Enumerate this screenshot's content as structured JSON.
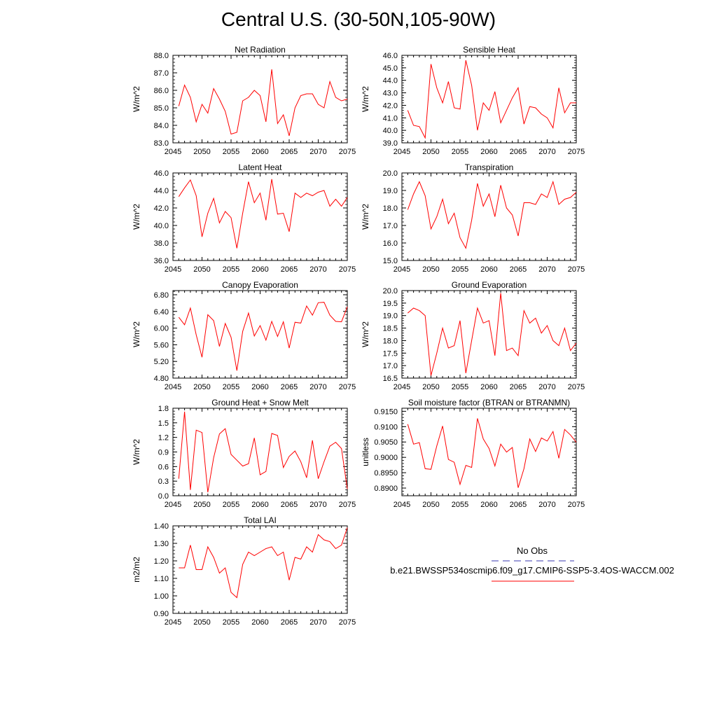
{
  "title": "Central U.S. (30-50N,105-90W)",
  "legend": {
    "obs_label": "No Obs",
    "obs_color": "#3b3bb0",
    "model_label": "b.e21.BWSSP534oscmip6.f09_g17.CMIP6-SSP5-3.4OS-WACCM.002",
    "model_color": "#ff0000"
  },
  "chart_data": [
    {
      "type": "line",
      "title": "Net Radiation",
      "ylabel": "W/m^2",
      "xlim": [
        2045,
        2075
      ],
      "ylim": [
        83.0,
        88.0
      ],
      "xticks": [
        "2045",
        "2050",
        "2055",
        "2060",
        "2065",
        "2070",
        "2075"
      ],
      "yticks": [
        "83.0",
        "84.0",
        "85.0",
        "86.0",
        "87.0",
        "88.0"
      ],
      "x": [
        2046,
        2047,
        2048,
        2049,
        2050,
        2051,
        2052,
        2053,
        2054,
        2055,
        2056,
        2057,
        2058,
        2059,
        2060,
        2061,
        2062,
        2063,
        2064,
        2065,
        2066,
        2067,
        2068,
        2069,
        2070,
        2071,
        2072,
        2073,
        2074,
        2075
      ],
      "series": [
        {
          "values": [
            85.1,
            86.3,
            85.6,
            84.2,
            85.2,
            84.7,
            86.1,
            85.5,
            84.8,
            83.5,
            83.6,
            85.4,
            85.6,
            86.0,
            85.7,
            84.2,
            87.2,
            84.1,
            84.6,
            83.4,
            85.0,
            85.7,
            85.8,
            85.8,
            85.2,
            85.0,
            86.5,
            85.6,
            85.4,
            85.5
          ]
        }
      ]
    },
    {
      "type": "line",
      "title": "Sensible Heat",
      "ylabel": "W/m^2",
      "xlim": [
        2045,
        2075
      ],
      "ylim": [
        39.0,
        46.0
      ],
      "xticks": [
        "2045",
        "2050",
        "2055",
        "2060",
        "2065",
        "2070",
        "2075"
      ],
      "yticks": [
        "39.0",
        "40.0",
        "41.0",
        "42.0",
        "43.0",
        "44.0",
        "45.0",
        "46.0"
      ],
      "x": [
        2046,
        2047,
        2048,
        2049,
        2050,
        2051,
        2052,
        2053,
        2054,
        2055,
        2056,
        2057,
        2058,
        2059,
        2060,
        2061,
        2062,
        2063,
        2064,
        2065,
        2066,
        2067,
        2068,
        2069,
        2070,
        2071,
        2072,
        2073,
        2074,
        2075
      ],
      "series": [
        {
          "values": [
            41.6,
            40.4,
            40.3,
            39.4,
            45.3,
            43.4,
            42.2,
            43.9,
            41.8,
            41.7,
            45.6,
            43.6,
            40.0,
            42.2,
            41.6,
            43.1,
            40.6,
            41.6,
            42.6,
            43.4,
            40.5,
            41.9,
            41.8,
            41.3,
            41.0,
            40.2,
            43.4,
            41.4,
            42.2,
            42.2
          ]
        }
      ]
    },
    {
      "type": "line",
      "title": "Latent Heat",
      "ylabel": "W/m^2",
      "xlim": [
        2045,
        2075
      ],
      "ylim": [
        36.0,
        46.0
      ],
      "xticks": [
        "2045",
        "2050",
        "2055",
        "2060",
        "2065",
        "2070",
        "2075"
      ],
      "yticks": [
        "36.0",
        "38.0",
        "40.0",
        "42.0",
        "44.0",
        "46.0"
      ],
      "x": [
        2046,
        2047,
        2048,
        2049,
        2050,
        2051,
        2052,
        2053,
        2054,
        2055,
        2056,
        2057,
        2058,
        2059,
        2060,
        2061,
        2062,
        2063,
        2064,
        2065,
        2066,
        2067,
        2068,
        2069,
        2070,
        2071,
        2072,
        2073,
        2074,
        2075
      ],
      "series": [
        {
          "values": [
            43.3,
            44.3,
            45.2,
            43.4,
            38.7,
            41.4,
            43.1,
            40.3,
            41.6,
            40.9,
            37.4,
            41.4,
            45.0,
            42.6,
            43.7,
            40.6,
            45.3,
            41.3,
            41.4,
            39.3,
            43.7,
            43.2,
            43.7,
            43.4,
            43.8,
            44.0,
            42.2,
            43.0,
            42.2,
            43.2
          ]
        }
      ]
    },
    {
      "type": "line",
      "title": "Transpiration",
      "ylabel": "W/m^2",
      "xlim": [
        2045,
        2075
      ],
      "ylim": [
        15.0,
        20.0
      ],
      "xticks": [
        "2045",
        "2050",
        "2055",
        "2060",
        "2065",
        "2070",
        "2075"
      ],
      "yticks": [
        "15.0",
        "16.0",
        "17.0",
        "18.0",
        "19.0",
        "20.0"
      ],
      "x": [
        2046,
        2047,
        2048,
        2049,
        2050,
        2051,
        2052,
        2053,
        2054,
        2055,
        2056,
        2057,
        2058,
        2059,
        2060,
        2061,
        2062,
        2063,
        2064,
        2065,
        2066,
        2067,
        2068,
        2069,
        2070,
        2071,
        2072,
        2073,
        2074,
        2075
      ],
      "series": [
        {
          "values": [
            17.9,
            18.8,
            19.5,
            18.7,
            16.8,
            17.5,
            18.5,
            17.1,
            17.7,
            16.3,
            15.7,
            17.3,
            19.4,
            18.1,
            18.8,
            17.5,
            19.3,
            18.0,
            17.6,
            16.4,
            18.3,
            18.3,
            18.2,
            18.8,
            18.6,
            19.5,
            18.2,
            18.5,
            18.6,
            18.9
          ]
        }
      ]
    },
    {
      "type": "line",
      "title": "Canopy Evaporation",
      "ylabel": "W/m^2",
      "xlim": [
        2045,
        2075
      ],
      "ylim": [
        4.8,
        6.9
      ],
      "xticks": [
        "2045",
        "2050",
        "2055",
        "2060",
        "2065",
        "2070",
        "2075"
      ],
      "yticks": [
        "4.80",
        "5.20",
        "5.60",
        "6.00",
        "6.40",
        "6.80"
      ],
      "x": [
        2046,
        2047,
        2048,
        2049,
        2050,
        2051,
        2052,
        2053,
        2054,
        2055,
        2056,
        2057,
        2058,
        2059,
        2060,
        2061,
        2062,
        2063,
        2064,
        2065,
        2066,
        2067,
        2068,
        2069,
        2070,
        2071,
        2072,
        2073,
        2074,
        2075
      ],
      "series": [
        {
          "values": [
            6.26,
            6.08,
            6.48,
            5.84,
            5.3,
            6.32,
            6.18,
            5.56,
            6.11,
            5.78,
            4.98,
            5.92,
            6.36,
            5.81,
            6.06,
            5.71,
            6.16,
            5.8,
            6.15,
            5.52,
            6.14,
            6.12,
            6.53,
            6.31,
            6.61,
            6.62,
            6.31,
            6.16,
            6.15,
            6.51
          ]
        }
      ]
    },
    {
      "type": "line",
      "title": "Ground Evaporation",
      "ylabel": "W/m^2",
      "xlim": [
        2045,
        2075
      ],
      "ylim": [
        16.5,
        20.0
      ],
      "xticks": [
        "2045",
        "2050",
        "2055",
        "2060",
        "2065",
        "2070",
        "2075"
      ],
      "yticks": [
        "16.5",
        "17.0",
        "17.5",
        "18.0",
        "18.5",
        "19.0",
        "19.5",
        "20.0"
      ],
      "x": [
        2046,
        2047,
        2048,
        2049,
        2050,
        2051,
        2052,
        2053,
        2054,
        2055,
        2056,
        2057,
        2058,
        2059,
        2060,
        2061,
        2062,
        2063,
        2064,
        2065,
        2066,
        2067,
        2068,
        2069,
        2070,
        2071,
        2072,
        2073,
        2074,
        2075
      ],
      "series": [
        {
          "values": [
            19.1,
            19.3,
            19.2,
            19.0,
            16.6,
            17.5,
            18.5,
            17.7,
            17.8,
            18.8,
            16.7,
            18.0,
            19.3,
            18.7,
            18.8,
            17.4,
            19.9,
            17.6,
            17.7,
            17.4,
            19.2,
            18.7,
            18.9,
            18.3,
            18.6,
            18.0,
            17.8,
            18.5,
            17.6,
            17.9
          ]
        }
      ]
    },
    {
      "type": "line",
      "title": "Ground Heat + Snow Melt",
      "ylabel": "W/m^2",
      "xlim": [
        2045,
        2075
      ],
      "ylim": [
        0.0,
        1.8
      ],
      "xticks": [
        "2045",
        "2050",
        "2055",
        "2060",
        "2065",
        "2070",
        "2075"
      ],
      "yticks": [
        "0.0",
        "0.3",
        "0.6",
        "0.9",
        "1.2",
        "1.5",
        "1.8"
      ],
      "x": [
        2046,
        2047,
        2048,
        2049,
        2050,
        2051,
        2052,
        2053,
        2054,
        2055,
        2056,
        2057,
        2058,
        2059,
        2060,
        2061,
        2062,
        2063,
        2064,
        2065,
        2066,
        2067,
        2068,
        2069,
        2070,
        2071,
        2072,
        2073,
        2074,
        2075
      ],
      "series": [
        {
          "values": [
            0.35,
            1.73,
            0.12,
            1.35,
            1.3,
            0.07,
            0.78,
            1.27,
            1.38,
            0.85,
            0.73,
            0.61,
            0.66,
            1.19,
            0.43,
            0.5,
            1.28,
            1.24,
            0.58,
            0.81,
            0.92,
            0.7,
            0.37,
            1.14,
            0.35,
            0.7,
            1.02,
            1.1,
            0.97,
            0.14
          ]
        }
      ]
    },
    {
      "type": "line",
      "title": "Soil moisture factor (BTRAN or BTRANMN)",
      "ylabel": "unitless",
      "xlim": [
        2045,
        2075
      ],
      "ylim": [
        0.8875,
        0.916
      ],
      "xticks": [
        "2045",
        "2050",
        "2055",
        "2060",
        "2065",
        "2070",
        "2075"
      ],
      "yticks": [
        "0.8900",
        "0.8950",
        "0.9000",
        "0.9050",
        "0.9100",
        "0.9150"
      ],
      "x": [
        2046,
        2047,
        2048,
        2049,
        2050,
        2051,
        2052,
        2053,
        2054,
        2055,
        2056,
        2057,
        2058,
        2059,
        2060,
        2061,
        2062,
        2063,
        2064,
        2065,
        2066,
        2067,
        2068,
        2069,
        2070,
        2071,
        2072,
        2073,
        2074,
        2075
      ],
      "series": [
        {
          "values": [
            0.9108,
            0.9043,
            0.9048,
            0.8963,
            0.8961,
            0.9037,
            0.9102,
            0.8993,
            0.8984,
            0.8912,
            0.8974,
            0.8967,
            0.9127,
            0.906,
            0.9029,
            0.8972,
            0.9043,
            0.9017,
            0.9032,
            0.8901,
            0.8963,
            0.906,
            0.9019,
            0.9063,
            0.9053,
            0.9084,
            0.8997,
            0.9091,
            0.9073,
            0.9049
          ]
        }
      ]
    },
    {
      "type": "line",
      "title": "Total LAI",
      "ylabel": "m2/m2",
      "xlim": [
        2045,
        2075
      ],
      "ylim": [
        0.9,
        1.4
      ],
      "xticks": [
        "2045",
        "2050",
        "2055",
        "2060",
        "2065",
        "2070",
        "2075"
      ],
      "yticks": [
        "0.90",
        "1.00",
        "1.10",
        "1.20",
        "1.30",
        "1.40"
      ],
      "x": [
        2046,
        2047,
        2048,
        2049,
        2050,
        2051,
        2052,
        2053,
        2054,
        2055,
        2056,
        2057,
        2058,
        2059,
        2060,
        2061,
        2062,
        2063,
        2064,
        2065,
        2066,
        2067,
        2068,
        2069,
        2070,
        2071,
        2072,
        2073,
        2074,
        2075
      ],
      "series": [
        {
          "values": [
            1.16,
            1.16,
            1.29,
            1.15,
            1.15,
            1.28,
            1.22,
            1.13,
            1.16,
            1.02,
            0.99,
            1.18,
            1.25,
            1.23,
            1.25,
            1.27,
            1.28,
            1.23,
            1.25,
            1.09,
            1.22,
            1.21,
            1.28,
            1.25,
            1.35,
            1.32,
            1.31,
            1.27,
            1.29,
            1.39
          ]
        }
      ]
    }
  ]
}
